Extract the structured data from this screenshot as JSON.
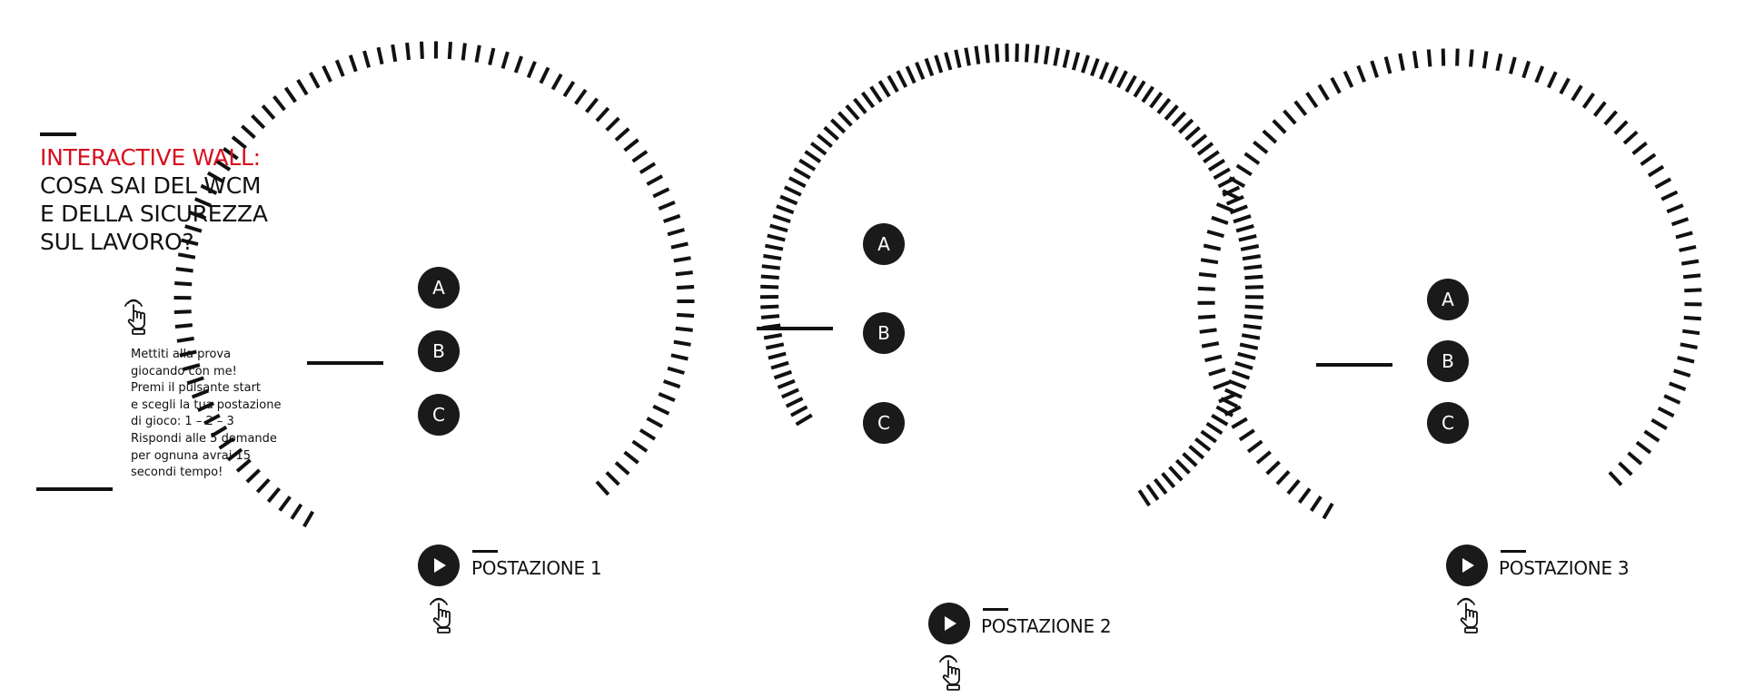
{
  "colors": {
    "accent": "#d8101f",
    "ink": "#111111",
    "button": "#1a1a1a",
    "background": "#ffffff"
  },
  "intro": {
    "title_accent": "INTERACTIVE WALL:",
    "title_lines": [
      "COSA SAI DEL WCM",
      "E DELLA SICUREZZA",
      "SUL LAVORO?"
    ],
    "tap_icon": "hand-tap-icon",
    "instructions": [
      "Mettiti alla prova",
      "giocando con me!",
      "Premi il pulsante start",
      "e scegli la tua postazione",
      "di gioco: 1 – 2 – 3",
      "Rispondi alle 5 domande",
      "per ognuna avrai 15",
      "secondi tempo!"
    ]
  },
  "stations": [
    {
      "label": "POSTAZIONE 1",
      "options": [
        "A",
        "B",
        "C"
      ],
      "start_icon": "play-icon",
      "tap_icon": "hand-tap-icon"
    },
    {
      "label": "POSTAZIONE 2",
      "options": [
        "A",
        "B",
        "C"
      ],
      "start_icon": "play-icon",
      "tap_icon": "hand-tap-icon"
    },
    {
      "label": "POSTAZIONE 3",
      "options": [
        "A",
        "B",
        "C"
      ],
      "start_icon": "play-icon",
      "tap_icon": "hand-tap-icon"
    }
  ]
}
